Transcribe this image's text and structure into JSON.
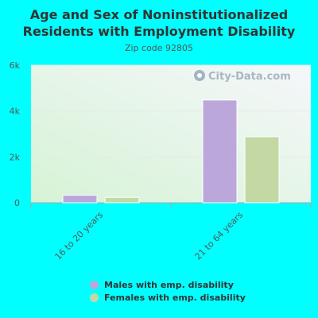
{
  "watermark": "City-Data.com",
  "colors": {
    "background": "#00ffff",
    "males": "#bca7da",
    "females": "#c4d8a4",
    "plot_bg_top": "#f4f7f7",
    "plot_bg_bottom": "#d9f4d9"
  },
  "chart_data": {
    "type": "bar",
    "title": "Age and Sex of Noninstitutionalized Residents with Employment Disability",
    "subtitle": "Zip code 92805",
    "categories": [
      "16 to 20 years",
      "21 to 64 years"
    ],
    "series": [
      {
        "name": "Males with emp. disability",
        "values": [
          330,
          4480
        ]
      },
      {
        "name": "Females with emp. disability",
        "values": [
          235,
          2880
        ]
      }
    ],
    "yticks": [
      {
        "value": 0,
        "label": "0"
      },
      {
        "value": 2000,
        "label": "2k"
      },
      {
        "value": 4000,
        "label": "4k"
      },
      {
        "value": 6000,
        "label": "6k"
      }
    ],
    "ylim": [
      0,
      6000
    ],
    "xlabel": "",
    "ylabel": "",
    "grid": true,
    "legend_position": "bottom"
  }
}
